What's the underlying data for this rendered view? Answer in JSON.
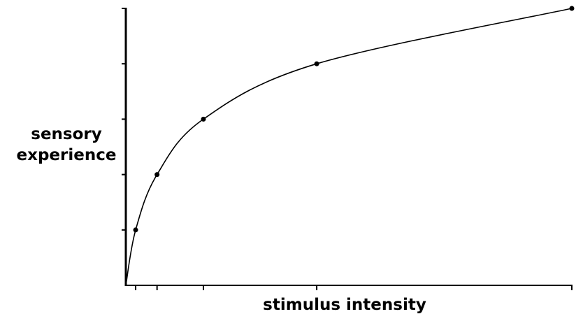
{
  "chart_data": {
    "type": "line",
    "x_label": "stimulus intensity",
    "y_label": "sensory experience",
    "x": [
      2.2,
      7,
      17.4,
      42.8,
      100
    ],
    "values": [
      1,
      2,
      3,
      4,
      5
    ],
    "color": "#000000",
    "xlim": [
      0,
      100
    ],
    "xticks": [
      2.2,
      7,
      17.4,
      42.8,
      100
    ],
    "ylim": [
      0,
      5
    ],
    "yticks": [
      1,
      2,
      3,
      4,
      5
    ],
    "grid": false
  }
}
